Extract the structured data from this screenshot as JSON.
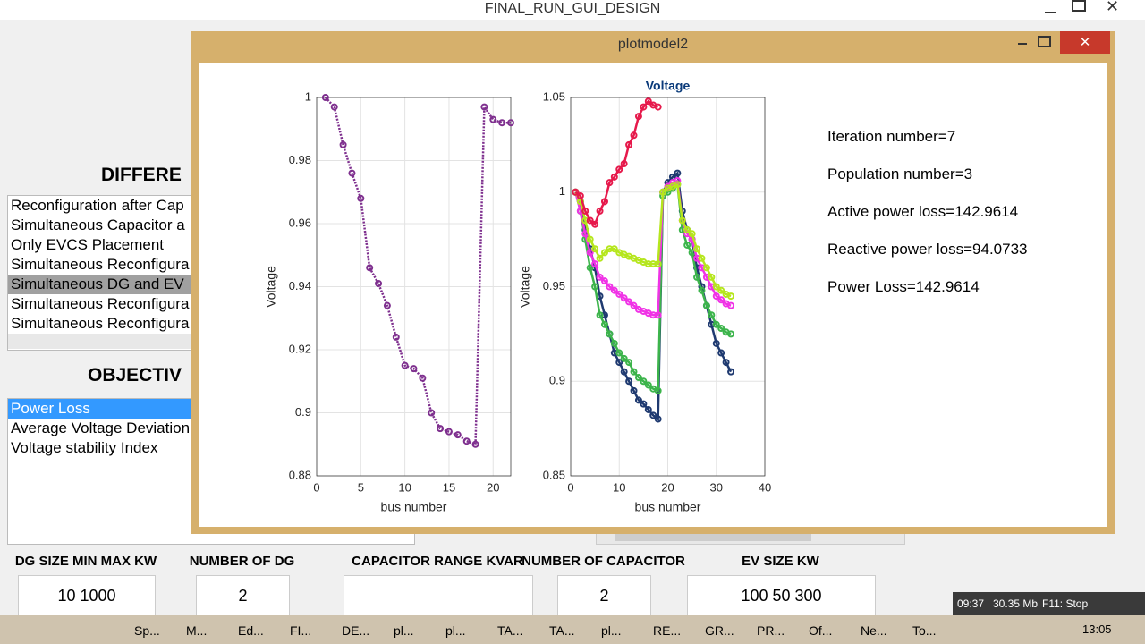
{
  "window": {
    "title": "FINAL_RUN_GUI_DESIGN"
  },
  "left_panel": {
    "heading1": "DIFFERE",
    "list1": [
      "Reconfiguration after Cap",
      "Simultaneous Capacitor a",
      "Only EVCS Placement",
      "Simultaneous Reconfigura",
      "Simultaneous DG and EV",
      "Simultaneous Reconfigura",
      "Simultaneous Reconfigura"
    ],
    "heading2": "OBJECTIV",
    "list2": [
      "Power Loss",
      "Average Voltage Deviation",
      "Voltage stability Index"
    ]
  },
  "fields": [
    {
      "label": "DG SIZE MIN MAX KW",
      "value": "10  1000"
    },
    {
      "label": "NUMBER OF DG",
      "value": "2"
    },
    {
      "label": "CAPACITOR RANGE KVAR"
    },
    {
      "label": "NUMBER OF CAPACITOR",
      "value": "2"
    },
    {
      "label": "EV SIZE KW",
      "value": "100  50  300"
    }
  ],
  "plot_window": {
    "title": "plotmodel2"
  },
  "info": [
    "Iteration number=7",
    "Population number=3",
    "Active power loss=142.9614",
    "Reactive power loss=94.0733",
    "Power Loss=142.9614"
  ],
  "chart_data": [
    {
      "type": "line",
      "xlabel": "bus number",
      "ylabel": "Voltage",
      "color": "#7e2f8e",
      "grid": true,
      "x": [
        1,
        2,
        3,
        4,
        5,
        6,
        7,
        8,
        9,
        10,
        11,
        12,
        13,
        14,
        15,
        16,
        17,
        18,
        19,
        20,
        21,
        22
      ],
      "values": [
        1,
        0.997,
        0.985,
        0.976,
        0.968,
        0.946,
        0.941,
        0.934,
        0.924,
        0.915,
        0.914,
        0.911,
        0.9,
        0.895,
        0.894,
        0.893,
        0.891,
        0.89,
        0.997,
        0.993,
        0.992,
        0.992
      ],
      "xlim": [
        0,
        22
      ],
      "xticks": [
        0,
        5,
        10,
        15,
        20
      ],
      "ylim": [
        0.88,
        1
      ],
      "yticks": [
        0.88,
        0.9,
        0.92,
        0.94,
        0.96,
        0.98,
        1
      ]
    },
    {
      "type": "line",
      "title": "Voltage",
      "xlabel": "bus number",
      "ylabel": "Voltage",
      "grid": true,
      "x": [
        1,
        2,
        3,
        4,
        5,
        6,
        7,
        8,
        9,
        10,
        11,
        12,
        13,
        14,
        15,
        16,
        17,
        18,
        19,
        20,
        21,
        22,
        23,
        24,
        25,
        26,
        27,
        28,
        29,
        30,
        31,
        32,
        33
      ],
      "series": [
        {
          "color": "#1f3a70",
          "values": [
            1,
            0.995,
            0.98,
            0.97,
            0.96,
            0.945,
            0.935,
            0.925,
            0.915,
            0.91,
            0.905,
            0.9,
            0.895,
            0.89,
            0.888,
            0.885,
            0.882,
            0.88,
            1.0,
            1.005,
            1.008,
            1.01,
            0.99,
            0.98,
            0.975,
            0.96,
            0.95,
            0.94,
            0.93,
            0.92,
            0.915,
            0.91,
            0.905
          ]
        },
        {
          "color": "#3cb44b",
          "values": [
            1,
            0.99,
            0.975,
            0.96,
            0.95,
            0.935,
            0.93,
            0.925,
            0.92,
            0.915,
            0.912,
            0.91,
            0.905,
            0.902,
            0.9,
            0.898,
            0.896,
            0.895,
            0.998,
            1.0,
            1.002,
            1.004,
            0.98,
            0.972,
            0.968,
            0.955,
            0.948,
            0.94,
            0.935,
            0.93,
            0.928,
            0.926,
            0.925
          ]
        },
        {
          "color": "#f032e6",
          "values": [
            1,
            0.99,
            0.978,
            0.968,
            0.962,
            0.955,
            0.953,
            0.95,
            0.948,
            0.946,
            0.944,
            0.942,
            0.94,
            0.938,
            0.937,
            0.936,
            0.935,
            0.935,
            1.0,
            1.003,
            1.005,
            1.006,
            0.985,
            0.978,
            0.975,
            0.965,
            0.96,
            0.955,
            0.95,
            0.945,
            0.943,
            0.941,
            0.94
          ]
        },
        {
          "color": "#b5e61d",
          "values": [
            1,
            0.995,
            0.985,
            0.975,
            0.97,
            0.965,
            0.968,
            0.97,
            0.97,
            0.968,
            0.967,
            0.966,
            0.965,
            0.964,
            0.963,
            0.962,
            0.962,
            0.962,
            1.0,
            1.002,
            1.003,
            1.004,
            0.985,
            0.98,
            0.978,
            0.97,
            0.965,
            0.96,
            0.955,
            0.95,
            0.948,
            0.946,
            0.945
          ]
        },
        {
          "color": "#e6194b",
          "values": [
            1,
            0.998,
            0.99,
            0.985,
            0.983,
            0.99,
            0.995,
            1.005,
            1.008,
            1.012,
            1.015,
            1.025,
            1.03,
            1.04,
            1.045,
            1.048,
            1.046,
            1.045,
            null,
            null,
            null,
            null,
            null,
            null,
            null,
            null,
            null,
            null,
            null,
            null,
            null,
            null,
            null
          ]
        }
      ],
      "xlim": [
        0,
        40
      ],
      "xticks": [
        0,
        10,
        20,
        30,
        40
      ],
      "ylim": [
        0.85,
        1.05
      ],
      "yticks": [
        0.85,
        0.9,
        0.95,
        1,
        1.05
      ]
    }
  ],
  "recorder": {
    "time": "09:37",
    "size": "30.35 Mb",
    "stop": "F11: Stop"
  },
  "taskbar": {
    "items": [
      "Sp...",
      "M...",
      "Ed...",
      "FI...",
      "DE...",
      "pl...",
      "pl...",
      "TA...",
      "TA...",
      "pl...",
      "RE...",
      "GR...",
      "PR...",
      "Of...",
      "Ne...",
      "To..."
    ],
    "clock": "13:05"
  }
}
